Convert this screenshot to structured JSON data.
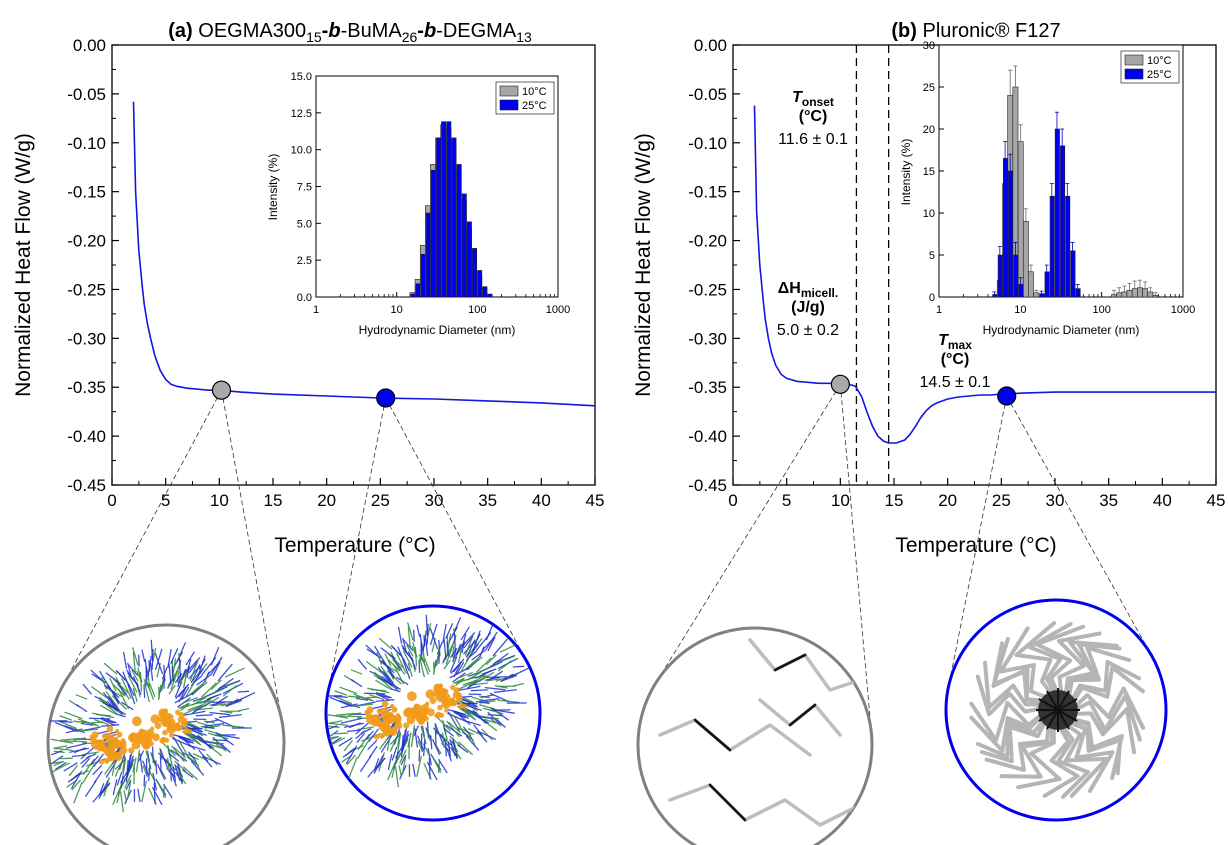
{
  "chart_data": [
    {
      "id": "a",
      "type": "line",
      "title": {
        "label": "(a)",
        "parts": [
          "OEGMA300",
          "15",
          "-",
          "b",
          "-BuMA",
          "26",
          "-",
          "b",
          "-DEGMA",
          "13"
        ]
      },
      "xlabel": "Temperature (°C)",
      "ylabel": "Normalized Heat Flow (W/g)",
      "xlim": [
        0,
        45
      ],
      "ylim": [
        -0.45,
        0.0
      ],
      "xticks": [
        "0",
        "5",
        "10",
        "15",
        "20",
        "25",
        "30",
        "35",
        "40",
        "45"
      ],
      "yticks": [
        "0.00",
        "-0.05",
        "-0.10",
        "-0.15",
        "-0.20",
        "-0.25",
        "-0.30",
        "-0.35",
        "-0.40",
        "-0.45"
      ],
      "series": [
        {
          "color": "#1515e0",
          "x": [
            2,
            2.2,
            2.5,
            2.8,
            3,
            3.3,
            3.6,
            4,
            4.5,
            5,
            5.5,
            6,
            7,
            8,
            9,
            10,
            12,
            15,
            20,
            25,
            30,
            35,
            40,
            45
          ],
          "y": [
            -0.058,
            -0.15,
            -0.21,
            -0.245,
            -0.265,
            -0.285,
            -0.3,
            -0.318,
            -0.333,
            -0.342,
            -0.347,
            -0.349,
            -0.351,
            -0.352,
            -0.353,
            -0.353,
            -0.355,
            -0.357,
            -0.359,
            -0.361,
            -0.362,
            -0.364,
            -0.366,
            -0.369
          ]
        }
      ],
      "markers": [
        {
          "x": 10.2,
          "y": -0.353,
          "color": "#a9a9a9"
        },
        {
          "x": 25.5,
          "y": -0.361,
          "color": "#0000ee"
        }
      ],
      "inset": {
        "type": "bar",
        "xlabel": "Hydrodynamic Diameter (nm)",
        "ylabel": "Intensity (%)",
        "xscale": "log",
        "xlim": [
          1,
          1000
        ],
        "ylim": [
          0,
          15
        ],
        "xticks": [
          "1",
          "10",
          "100",
          "1000"
        ],
        "yticks": [
          "0.0",
          "2.5",
          "5.0",
          "7.5",
          "10.0",
          "12.5",
          "15.0"
        ],
        "legend": "top-right",
        "series": [
          {
            "name": "10°C",
            "color": "#a6a6a6",
            "x": [
              15.7,
              18.2,
              21.1,
              24.4,
              28.2,
              32.7,
              37.8,
              43.8,
              50.7,
              58.8,
              68.1,
              78.8,
              91.3,
              105.7,
              122.4,
              141.8
            ],
            "values": [
              0.3,
              1.2,
              3.5,
              6.2,
              9.0,
              10.8,
              11.7,
              11.4,
              10.3,
              8.6,
              6.6,
              4.6,
              2.9,
              1.5,
              0.6,
              0.1
            ]
          },
          {
            "name": "25°C",
            "color": "#0000ee",
            "x": [
              15.7,
              18.2,
              21.1,
              24.4,
              28.2,
              32.7,
              37.8,
              43.8,
              50.7,
              58.8,
              68.1,
              78.8,
              91.3,
              105.7,
              122.4,
              141.8
            ],
            "values": [
              0.2,
              0.9,
              2.9,
              5.7,
              8.6,
              10.8,
              11.9,
              11.9,
              10.8,
              9.0,
              7.0,
              5.1,
              3.3,
              1.8,
              0.7,
              0.2
            ]
          }
        ]
      },
      "circles": [
        {
          "color": "#808080",
          "content": "micelle"
        },
        {
          "color": "#0000ee",
          "content": "micelle"
        }
      ]
    },
    {
      "id": "b",
      "type": "line",
      "title": {
        "label": "(b)",
        "parts": [
          "Pluronic® F127"
        ]
      },
      "xlabel": "Temperature (°C)",
      "ylabel": "Normalized Heat Flow (W/g)",
      "xlim": [
        0,
        45
      ],
      "ylim": [
        -0.45,
        0.0
      ],
      "xticks": [
        "0",
        "5",
        "10",
        "15",
        "20",
        "25",
        "30",
        "35",
        "40",
        "45"
      ],
      "yticks": [
        "0.00",
        "-0.05",
        "-0.10",
        "-0.15",
        "-0.20",
        "-0.25",
        "-0.30",
        "-0.35",
        "-0.40",
        "-0.45"
      ],
      "series": [
        {
          "color": "#1515e0",
          "x": [
            2,
            2.2,
            2.5,
            2.8,
            3,
            3.3,
            3.6,
            4,
            4.5,
            5,
            6,
            7,
            8,
            9,
            10,
            10.8,
            11.4,
            12,
            12.5,
            13,
            13.5,
            14,
            14.5,
            15.2,
            16,
            16.5,
            17,
            17.5,
            18,
            18.5,
            19,
            20,
            21,
            22,
            23,
            24,
            25,
            27,
            30,
            35,
            40,
            45
          ],
          "y": [
            -0.062,
            -0.17,
            -0.225,
            -0.26,
            -0.28,
            -0.3,
            -0.315,
            -0.328,
            -0.337,
            -0.341,
            -0.344,
            -0.345,
            -0.346,
            -0.346,
            -0.347,
            -0.347,
            -0.349,
            -0.36,
            -0.376,
            -0.39,
            -0.4,
            -0.405,
            -0.407,
            -0.407,
            -0.404,
            -0.398,
            -0.39,
            -0.381,
            -0.374,
            -0.369,
            -0.366,
            -0.362,
            -0.36,
            -0.359,
            -0.358,
            -0.358,
            -0.357,
            -0.356,
            -0.355,
            -0.355,
            -0.355,
            -0.355
          ]
        }
      ],
      "markers": [
        {
          "x": 10,
          "y": -0.347,
          "color": "#a9a9a9"
        },
        {
          "x": 25.5,
          "y": -0.359,
          "color": "#0000ee"
        }
      ],
      "vlines": [
        11.5,
        14.5
      ],
      "annotations": [
        {
          "lines": [
            "T",
            "onset",
            "(°C)",
            "11.6 ± 0.1"
          ]
        },
        {
          "lines": [
            "ΔH",
            "micell.",
            "(J/g)",
            "5.0 ± 0.2"
          ]
        },
        {
          "lines": [
            "T",
            "max",
            "(°C)",
            "14.5 ± 0.1"
          ]
        }
      ],
      "inset": {
        "type": "bar",
        "xlabel": "Hydrodynamic Diameter (nm)",
        "ylabel": "Intensity (%)",
        "xscale": "log",
        "xlim": [
          1,
          1000
        ],
        "ylim": [
          0,
          30
        ],
        "xticks": [
          "1",
          "10",
          "100",
          "1000"
        ],
        "yticks": [
          "0",
          "5",
          "10",
          "15",
          "20",
          "25",
          "30"
        ],
        "legend": "top-right",
        "series": [
          {
            "name": "10°C",
            "color": "#a6a6a6",
            "x": [
              5.6,
              6.5,
              7.5,
              8.7,
              10.1,
              11.7,
              13.5,
              15.7,
              141.8,
              164.2,
              190.1,
              220.2,
              255.0,
              295.3,
              342.0,
              396.1,
              458.7
            ],
            "values": [
              2.0,
              13.5,
              24.0,
              25.0,
              18.5,
              9.0,
              3.0,
              0.5,
              0.3,
              0.5,
              0.6,
              0.8,
              1.0,
              1.1,
              1.0,
              0.6,
              0.2
            ],
            "errors": [
              1.5,
              2.5,
              3.0,
              2.5,
              2.0,
              1.5,
              0.8,
              0.3,
              0.5,
              0.6,
              0.7,
              0.8,
              0.9,
              0.9,
              0.8,
              0.5,
              0.3
            ]
          },
          {
            "name": "25°C",
            "color": "#0000ee",
            "x": [
              4.8,
              5.6,
              6.5,
              7.5,
              8.7,
              10.1,
              18.2,
              21.1,
              24.4,
              28.2,
              32.7,
              37.8,
              43.8,
              50.7
            ],
            "values": [
              0.3,
              5.0,
              16.5,
              15.0,
              5.0,
              1.5,
              0.4,
              3.0,
              12.0,
              20.0,
              18.0,
              12.0,
              5.5,
              1.0
            ],
            "errors": [
              0.3,
              1.0,
              2.0,
              2.0,
              1.5,
              0.8,
              0.3,
              0.8,
              1.5,
              2.0,
              2.0,
              1.5,
              1.0,
              0.5
            ]
          }
        ]
      },
      "circles": [
        {
          "color": "#808080",
          "content": "unimers"
        },
        {
          "color": "#0000ee",
          "content": "micelle"
        }
      ]
    }
  ]
}
